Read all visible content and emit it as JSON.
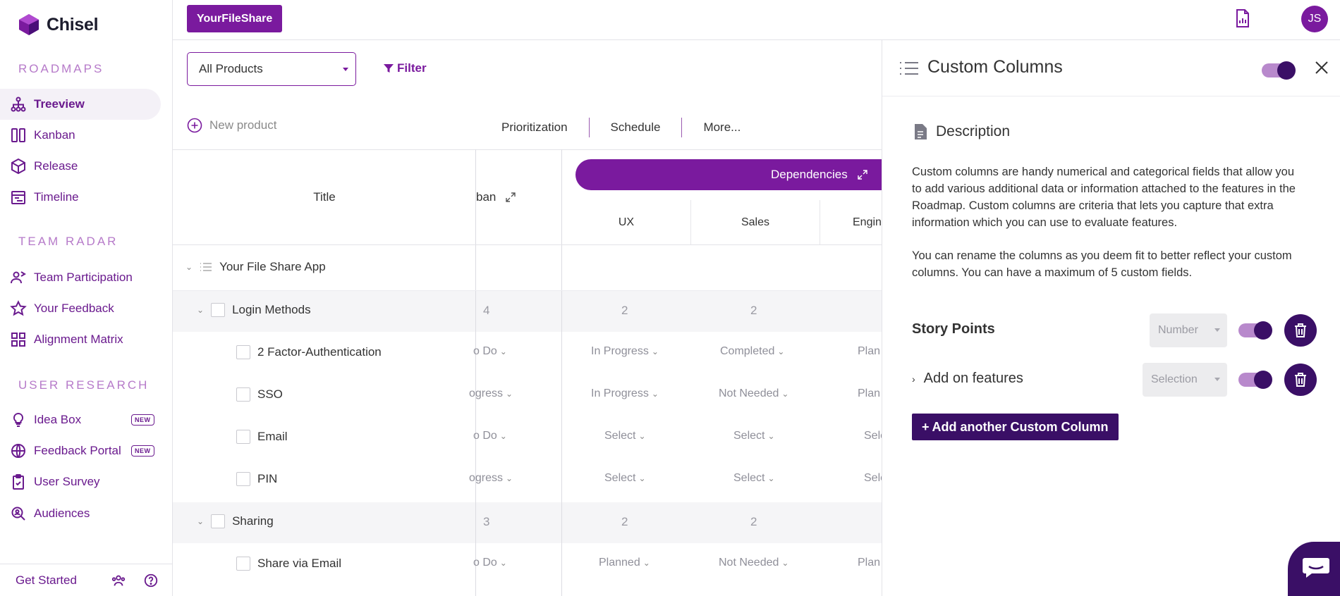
{
  "app": {
    "name": "Chisel"
  },
  "sidebar": {
    "sections": [
      {
        "title": "ROADMAPS",
        "items": [
          {
            "label": "Treeview",
            "icon": "tree-icon",
            "active": true
          },
          {
            "label": "Kanban",
            "icon": "kanban-icon"
          },
          {
            "label": "Release",
            "icon": "release-box-icon"
          },
          {
            "label": "Timeline",
            "icon": "timeline-icon"
          }
        ]
      },
      {
        "title": "TEAM RADAR",
        "items": [
          {
            "label": "Team Participation",
            "icon": "team-participation-icon"
          },
          {
            "label": "Your Feedback",
            "icon": "star-icon"
          },
          {
            "label": "Alignment Matrix",
            "icon": "grid-icon"
          }
        ]
      },
      {
        "title": "USER RESEARCH",
        "items": [
          {
            "label": "Idea Box",
            "icon": "lightbulb-icon",
            "badge": "NEW"
          },
          {
            "label": "Feedback Portal",
            "icon": "globe-icon",
            "badge": "NEW"
          },
          {
            "label": "User Survey",
            "icon": "clipboard-check-icon"
          },
          {
            "label": "Audiences",
            "icon": "audience-search-icon"
          }
        ]
      }
    ],
    "footer": {
      "label": "Get Started"
    }
  },
  "topbar": {
    "brand_button": "YourFileShare",
    "avatar_initials": "JS"
  },
  "main": {
    "product_select": "All Products",
    "filter_label": "Filter",
    "new_product": "New product",
    "tabs": [
      "Prioritization",
      "Schedule",
      "More..."
    ],
    "columns": {
      "title": "Title",
      "kanban_partial": "ban",
      "dependencies": "Dependencies",
      "sub": [
        "UX",
        "Sales",
        "Engin"
      ]
    },
    "rows": [
      {
        "title": "Your File Share App",
        "type": "root"
      },
      {
        "title": "Login Methods",
        "type": "group",
        "kanban": "4",
        "ux": "2",
        "sales": "2",
        "eng": ""
      },
      {
        "title": "2 Factor-Authentication",
        "type": "item",
        "kanban": "o Do",
        "ux": "In Progress",
        "sales": "Completed",
        "eng": "Plan"
      },
      {
        "title": "SSO",
        "type": "item",
        "kanban": "ogress",
        "ux": "In Progress",
        "sales": "Not Needed",
        "eng": "Plan"
      },
      {
        "title": "Email",
        "type": "item",
        "kanban": "o Do",
        "ux": "Select",
        "sales": "Select",
        "eng": "Sele"
      },
      {
        "title": "PIN",
        "type": "item",
        "kanban": "ogress",
        "ux": "Select",
        "sales": "Select",
        "eng": "Sele"
      },
      {
        "title": "Sharing",
        "type": "group",
        "kanban": "3",
        "ux": "2",
        "sales": "2",
        "eng": ""
      },
      {
        "title": "Share via Email",
        "type": "item",
        "kanban": "o Do",
        "ux": "Planned",
        "sales": "Not Needed",
        "eng": "Plan"
      }
    ]
  },
  "panel": {
    "title": "Custom Columns",
    "description_heading": "Description",
    "paragraph1": "Custom columns are handy numerical and categorical fields that allow you to add various additional data or information attached to the features in the Roadmap. Custom columns are criteria that lets you capture that extra information which you can use to evaluate features.",
    "paragraph2": "You can rename the columns as you deem fit to better reflect your custom columns. You can have a maximum of 5 custom fields.",
    "fields": [
      {
        "label": "Story Points",
        "type": "Number"
      },
      {
        "label": "Add on features",
        "type": "Selection"
      }
    ],
    "add_button": "Add another Custom Column"
  },
  "colors": {
    "brand": "#7a1a9e",
    "dark": "#3a0f66",
    "nav_text": "#6a1a8e",
    "section_title": "#b67ac9"
  }
}
